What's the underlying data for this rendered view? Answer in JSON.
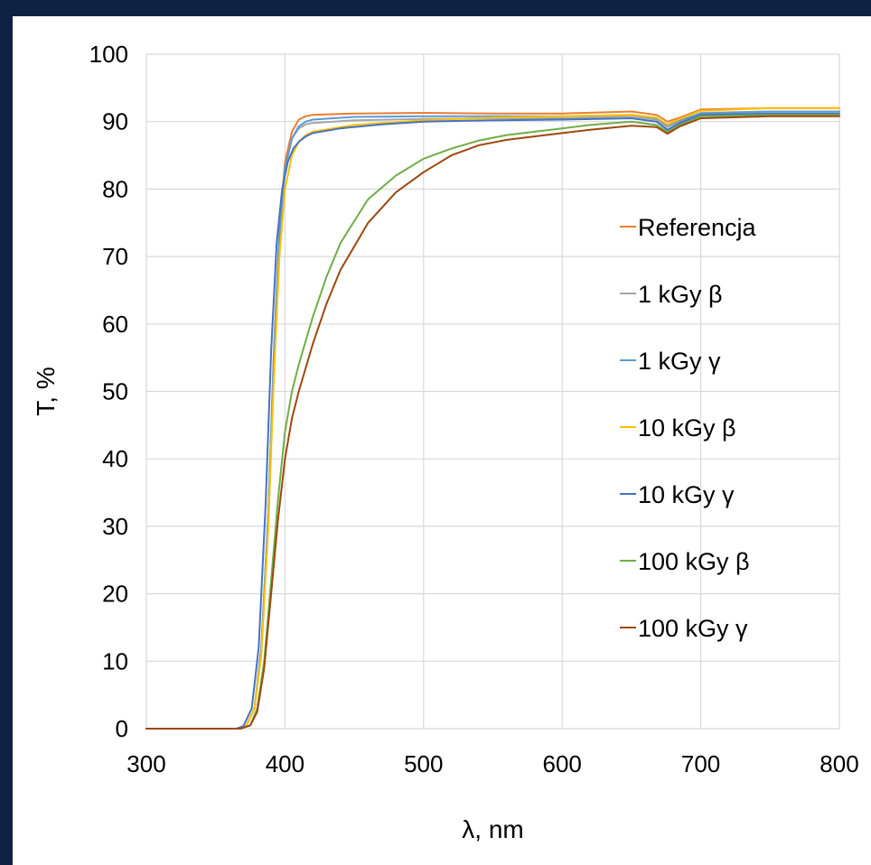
{
  "chart_data": {
    "type": "line",
    "title": "",
    "xlabel": "λ, nm",
    "ylabel": "T, %",
    "xlim": [
      300,
      800
    ],
    "ylim": [
      0,
      100
    ],
    "xticks": [
      "300",
      "400",
      "500",
      "600",
      "700",
      "800"
    ],
    "yticks": [
      "0",
      "10",
      "20",
      "30",
      "40",
      "50",
      "60",
      "70",
      "80",
      "90",
      "100"
    ],
    "grid": true,
    "legend_position": "right",
    "series": [
      {
        "name": "Referencja",
        "color": "#ed7d31",
        "x": [
          300,
          365,
          372,
          378,
          383,
          388,
          392,
          396,
          400,
          405,
          410,
          415,
          420,
          450,
          500,
          550,
          600,
          650,
          668,
          676,
          685,
          700,
          750,
          800
        ],
        "y": [
          0,
          0,
          0.4,
          3,
          12,
          32,
          56,
          74,
          84,
          88.5,
          90.3,
          90.8,
          91,
          91.2,
          91.3,
          91.2,
          91.2,
          91.5,
          91,
          90,
          90.6,
          91.8,
          92,
          92
        ]
      },
      {
        "name": "1 kGy β",
        "color": "#a5a5a5",
        "x": [
          300,
          365,
          372,
          378,
          383,
          388,
          392,
          396,
          400,
          405,
          410,
          415,
          420,
          450,
          500,
          550,
          600,
          650,
          668,
          676,
          685,
          700,
          750,
          800
        ],
        "y": [
          0,
          0,
          0.4,
          3,
          12,
          32,
          55,
          73,
          83,
          87.5,
          89,
          89.6,
          89.8,
          90.2,
          90.4,
          90.5,
          90.5,
          90.8,
          90.3,
          89.2,
          90,
          91.3,
          91.5,
          91.5
        ]
      },
      {
        "name": "1 kGy γ",
        "color": "#5b9bd5",
        "x": [
          300,
          365,
          372,
          378,
          383,
          388,
          392,
          396,
          400,
          405,
          410,
          415,
          420,
          450,
          500,
          550,
          600,
          650,
          668,
          676,
          685,
          700,
          750,
          800
        ],
        "y": [
          0,
          0,
          0.4,
          3,
          12,
          32,
          55,
          73,
          83,
          87.5,
          89.3,
          90,
          90.3,
          90.7,
          90.8,
          90.8,
          90.8,
          91,
          90.5,
          89.5,
          90.2,
          91.2,
          91.5,
          91.5
        ]
      },
      {
        "name": "10 kGy  β",
        "color": "#ffc000",
        "x": [
          300,
          365,
          372,
          378,
          383,
          388,
          392,
          396,
          400,
          405,
          410,
          415,
          420,
          450,
          500,
          550,
          600,
          650,
          668,
          676,
          685,
          700,
          750,
          800
        ],
        "y": [
          0,
          0,
          0.4,
          3,
          11,
          30,
          52,
          70,
          80,
          85,
          87,
          88,
          88.5,
          89.5,
          90.2,
          90.6,
          90.8,
          91,
          90.6,
          89.6,
          90.4,
          91.6,
          92,
          92
        ]
      },
      {
        "name": "10 kGy γ",
        "color": "#4472c4",
        "x": [
          300,
          365,
          370,
          376,
          381,
          386,
          390,
          394,
          398,
          402,
          406,
          410,
          415,
          420,
          440,
          470,
          500,
          550,
          600,
          650,
          668,
          676,
          685,
          700,
          750,
          800
        ],
        "y": [
          0,
          0,
          0.4,
          3,
          12,
          33,
          56,
          72,
          80,
          84,
          86,
          87,
          87.8,
          88.3,
          89,
          89.6,
          90,
          90.2,
          90.3,
          90.5,
          90,
          88.8,
          89.8,
          91,
          91.2,
          91.2
        ]
      },
      {
        "name": "100 kGy β",
        "color": "#70ad47",
        "x": [
          300,
          368,
          375,
          380,
          385,
          390,
          395,
          400,
          405,
          410,
          420,
          430,
          440,
          460,
          480,
          500,
          520,
          540,
          560,
          580,
          600,
          620,
          650,
          668,
          676,
          685,
          700,
          750,
          800
        ],
        "y": [
          0,
          0,
          0.5,
          3,
          10,
          22,
          34,
          44,
          50,
          54,
          61,
          67,
          72,
          78.5,
          82,
          84.5,
          86,
          87.2,
          88,
          88.5,
          89,
          89.5,
          90,
          89.5,
          88.5,
          89.5,
          90.8,
          91,
          91
        ]
      },
      {
        "name": "100 kGy γ",
        "color": "#9e480e",
        "x": [
          300,
          368,
          375,
          380,
          385,
          390,
          395,
          400,
          405,
          410,
          420,
          430,
          440,
          460,
          480,
          500,
          520,
          540,
          560,
          580,
          600,
          620,
          650,
          668,
          676,
          685,
          700,
          750,
          800
        ],
        "y": [
          0,
          0,
          0.5,
          2.5,
          9,
          20,
          31,
          40,
          46,
          50,
          57,
          63,
          68,
          75,
          79.5,
          82.5,
          85,
          86.5,
          87.3,
          87.8,
          88.3,
          88.8,
          89.4,
          89.2,
          88.2,
          89.3,
          90.5,
          90.8,
          90.8
        ]
      }
    ]
  }
}
